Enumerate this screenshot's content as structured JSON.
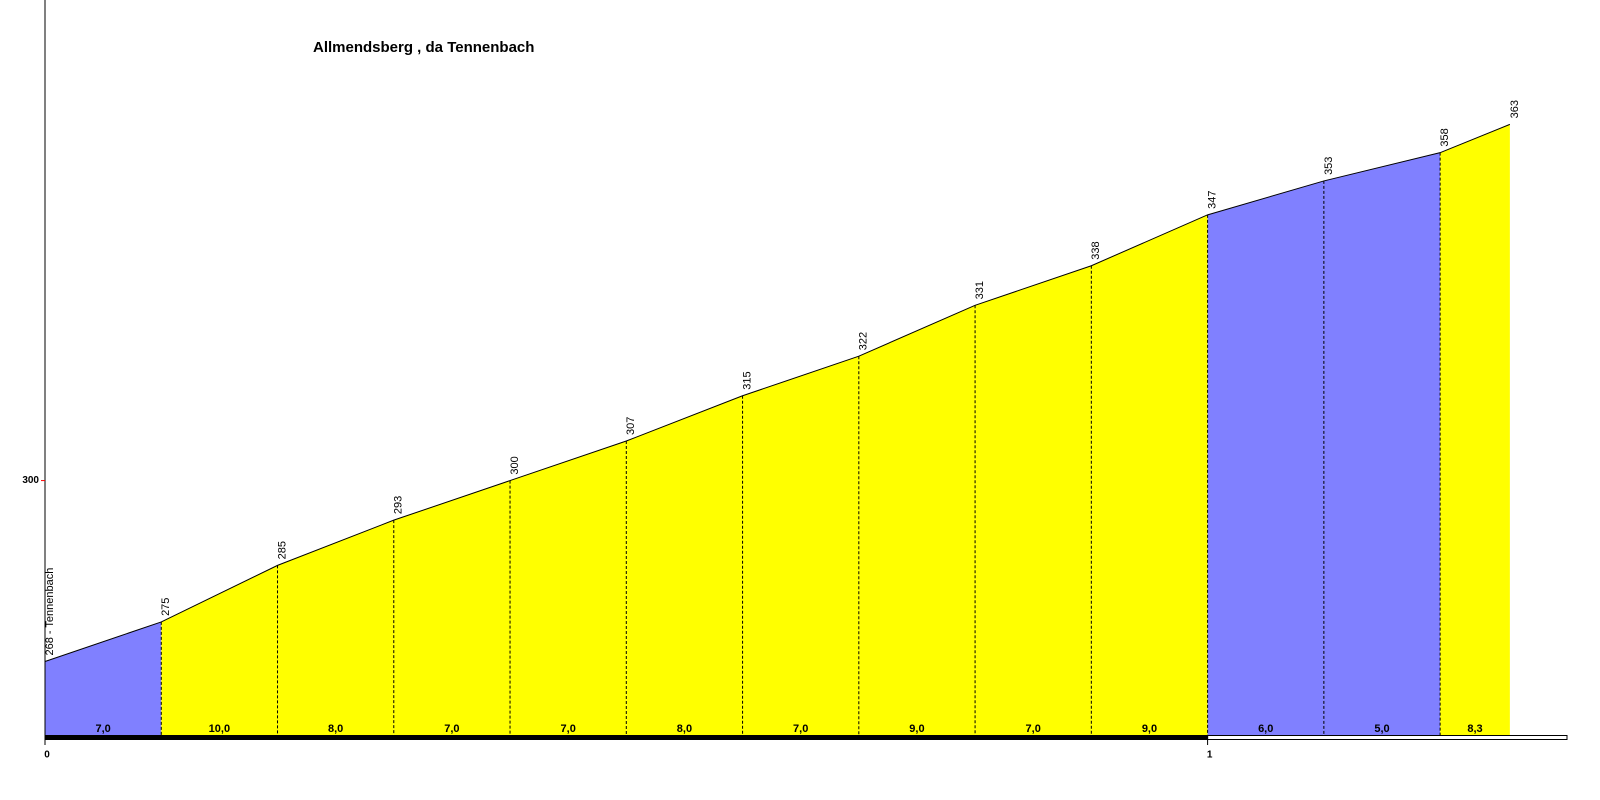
{
  "chart_data": {
    "type": "elevation-profile",
    "title": "Allmendsberg , da Tennenbach",
    "x": [
      0,
      0.1,
      0.2,
      0.3,
      0.4,
      0.5,
      0.6,
      0.7,
      0.8,
      0.9,
      1.0,
      1.1,
      1.2,
      1.26
    ],
    "values": [
      268,
      275,
      285,
      293,
      300,
      307,
      315,
      322,
      331,
      338,
      347,
      353,
      358,
      363
    ],
    "value_labels": [
      "268 - Tennenbach",
      "275",
      "285",
      "293",
      "300",
      "307",
      "315",
      "322",
      "331",
      "338",
      "347",
      "353",
      "358",
      "363"
    ],
    "gradients": [
      7.0,
      10.0,
      8.0,
      7.0,
      7.0,
      8.0,
      7.0,
      9.0,
      7.0,
      9.0,
      6.0,
      5.0,
      8.3
    ],
    "gradient_labels": [
      "7,0",
      "10,0",
      "8,0",
      "7,0",
      "7,0",
      "8,0",
      "7,0",
      "9,0",
      "7,0",
      "9,0",
      "6,0",
      "5,0",
      "8,3"
    ],
    "segment_colors": [
      "#8080ff",
      "#ffff00",
      "#ffff00",
      "#ffff00",
      "#ffff00",
      "#ffff00",
      "#ffff00",
      "#ffff00",
      "#ffff00",
      "#ffff00",
      "#8080ff",
      "#8080ff",
      "#ffff00"
    ],
    "line_color": "#000000",
    "xlim": [
      0,
      1.31
    ],
    "ylim": [
      255,
      385
    ],
    "xticks": [
      0,
      1
    ],
    "yticks": [
      300
    ]
  }
}
